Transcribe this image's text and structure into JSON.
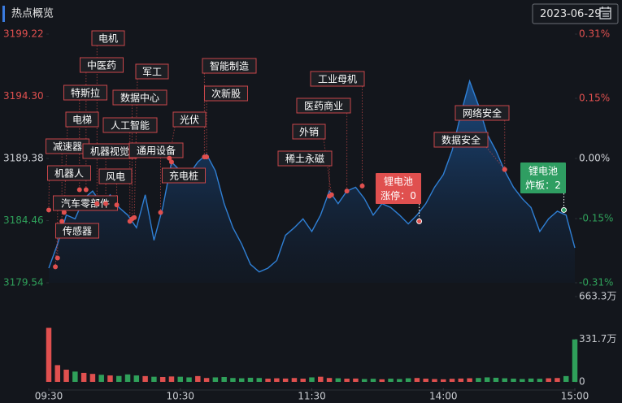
{
  "header": {
    "title": "热点概览",
    "date": "2023-06-29"
  },
  "chart_data": {
    "type": "line",
    "x": [
      0,
      4,
      8,
      12,
      16,
      20,
      24,
      28,
      32,
      36,
      40,
      44,
      48,
      52,
      56,
      60,
      64,
      68,
      72,
      76,
      80,
      84,
      88,
      92,
      96,
      100,
      104,
      108,
      112,
      116,
      120,
      124,
      128,
      132,
      136,
      140,
      144,
      148,
      152,
      156,
      160,
      164,
      168,
      172,
      176,
      180,
      184,
      188,
      192,
      196,
      200,
      204,
      208,
      212,
      216,
      220,
      224,
      228,
      232,
      236,
      240
    ],
    "values": [
      3180.7,
      3182.6,
      3184.9,
      3184.6,
      3186.2,
      3186.8,
      3185.8,
      3186.5,
      3185.5,
      3184.9,
      3183.9,
      3186.5,
      3182.9,
      3185.5,
      3189.1,
      3188.4,
      3188.1,
      3189.1,
      3189.7,
      3188.4,
      3185.8,
      3183.9,
      3182.6,
      3181.0,
      3180.4,
      3180.7,
      3181.3,
      3183.3,
      3183.9,
      3184.6,
      3183.6,
      3184.9,
      3186.8,
      3185.8,
      3186.8,
      3187.1,
      3186.2,
      3184.9,
      3185.8,
      3185.5,
      3184.9,
      3184.2,
      3184.9,
      3185.8,
      3187.1,
      3188.1,
      3190.0,
      3192.9,
      3195.5,
      3193.6,
      3191.3,
      3190.0,
      3188.4,
      3187.1,
      3186.2,
      3185.5,
      3183.6,
      3184.6,
      3185.2,
      3184.9,
      3182.3
    ],
    "color": "#2f7fd4",
    "xlim": [
      0,
      240
    ],
    "xticks": [
      {
        "value": 0,
        "label": "09:30"
      },
      {
        "value": 60,
        "label": "10:30"
      },
      {
        "value": 120,
        "label": "11:30"
      },
      {
        "value": 180,
        "label": "14:00"
      },
      {
        "value": 240,
        "label": "15:00"
      }
    ],
    "ylim": [
      3179.54,
      3199.22
    ],
    "yticks": [
      3199.22,
      {
        "value": 3194.3,
        "label": "3194.30"
      },
      3189.38,
      3184.46,
      3179.54
    ],
    "y2lim": [
      -0.31,
      0.31
    ],
    "y2ticks": [
      {
        "value": 0.31,
        "label": "0.31%"
      },
      {
        "value": 0.15,
        "label": "0.15%"
      },
      {
        "value": 0,
        "label": "0.00%"
      },
      {
        "value": -0.15,
        "label": "-0.15%"
      },
      {
        "value": -0.31,
        "label": "-0.31%"
      }
    ],
    "up_color": "#e0504f",
    "down_color": "#2fa05a",
    "volume": {
      "values": [
        420,
        130,
        95,
        80,
        70,
        62,
        55,
        50,
        46,
        58,
        50,
        45,
        40,
        38,
        42,
        40,
        35,
        45,
        30,
        35,
        38,
        30,
        28,
        32,
        30,
        25,
        28,
        26,
        30,
        25,
        35,
        40,
        30,
        28,
        25,
        26,
        22,
        24,
        20,
        25,
        22,
        28,
        30,
        25,
        22,
        20,
        24,
        26,
        28,
        30,
        35,
        32,
        28,
        25,
        22,
        26,
        24,
        28,
        30,
        45,
        330
      ],
      "ylim": [
        0,
        663.3
      ],
      "yticks": [
        {
          "value": 663.3,
          "label": "663.3万"
        },
        {
          "value": 331.7,
          "label": "331.7万"
        },
        0
      ]
    },
    "annotations": [
      {
        "label": "电机",
        "x": 22,
        "y": 3185.8
      },
      {
        "label": "中医药",
        "x": 17,
        "y": 3186.9
      },
      {
        "label": "军工",
        "x": 39,
        "y": 3184.7
      },
      {
        "label": "智能制造",
        "x": 71,
        "y": 3189.5
      },
      {
        "label": "特斯拉",
        "x": 14,
        "y": 3186.9
      },
      {
        "label": "数据中心",
        "x": 38,
        "y": 3184.6
      },
      {
        "label": "次新股",
        "x": 72,
        "y": 3189.5
      },
      {
        "label": "电梯",
        "x": 7,
        "y": 3185.1
      },
      {
        "label": "人工智能",
        "x": 37,
        "y": 3184.4
      },
      {
        "label": "光伏",
        "x": 55,
        "y": 3189.4
      },
      {
        "label": "减速器",
        "x": 6,
        "y": 3184.4
      },
      {
        "label": "机器视觉",
        "x": 26,
        "y": 3185.8
      },
      {
        "label": "通用设备",
        "x": 51,
        "y": 3185.1
      },
      {
        "label": "机器人",
        "x": 0,
        "y": 3185.3
      },
      {
        "label": "风电",
        "x": 31,
        "y": 3185.7
      },
      {
        "label": "充电桩",
        "x": 56,
        "y": 3189.1
      },
      {
        "label": "汽车零部件",
        "x": 4,
        "y": 3181.5
      },
      {
        "label": "传感器",
        "x": 3,
        "y": 3180.8
      },
      {
        "label": "工业母机",
        "x": 143,
        "y": 3187.2
      },
      {
        "label": "医药商业",
        "x": 136,
        "y": 3186.8
      },
      {
        "label": "外销",
        "x": 129,
        "y": 3186.5
      },
      {
        "label": "稀土永磁",
        "x": 128,
        "y": 3186.4
      },
      {
        "label": "网络安全",
        "x": 208,
        "y": 3188.5
      },
      {
        "label": "数据安全",
        "x": 208,
        "y": 3188.5
      }
    ],
    "callouts": [
      {
        "label": "锂电池",
        "status": "涨停：",
        "count": 0,
        "x": 169,
        "y": 3184.4,
        "color": "#e0504f"
      },
      {
        "label": "锂电池",
        "status": "炸板：",
        "count": 2,
        "x": 235,
        "y": 3185.3,
        "color": "#2f9e62"
      }
    ]
  }
}
